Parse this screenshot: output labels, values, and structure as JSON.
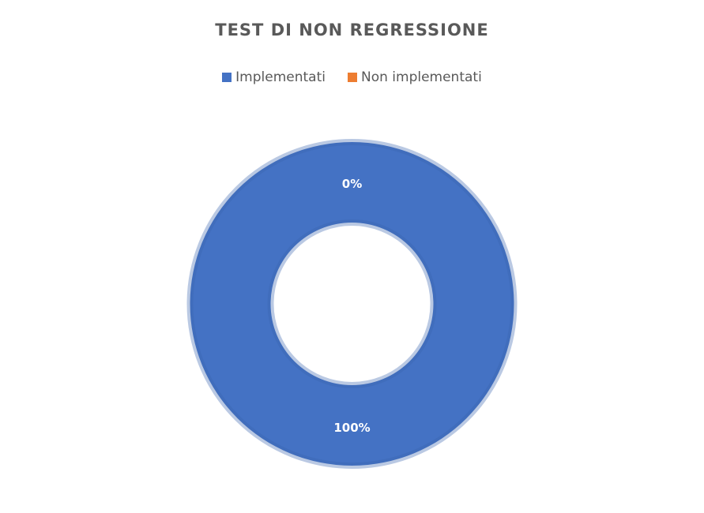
{
  "chart_data": {
    "type": "pie",
    "variant": "doughnut",
    "title": "TEST DI NON REGRESSIONE",
    "categories": [
      "Implementati",
      "Non implementati"
    ],
    "values": [
      100,
      0
    ],
    "data_labels": [
      "100%",
      "0%"
    ],
    "colors": [
      "#4472C4",
      "#ED7D31"
    ],
    "legend_position": "top"
  }
}
